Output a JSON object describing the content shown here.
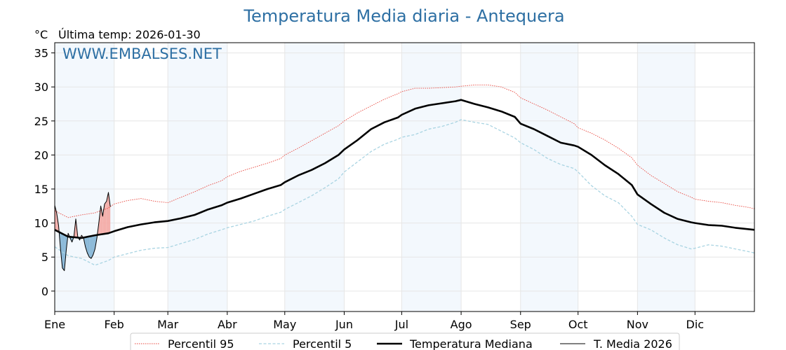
{
  "chart_data": {
    "type": "line",
    "title": "Temperatura Media diaria - Antequera",
    "unit": "°C",
    "last_temp_label": "Última temp: 2026-01-30",
    "watermark": "WWW.EMBALSES.NET",
    "ylim": [
      -3,
      36.5
    ],
    "yticks": [
      0,
      5,
      10,
      15,
      20,
      25,
      30,
      35
    ],
    "xlim": [
      1,
      366
    ],
    "months": [
      {
        "label": "Ene",
        "day": 1
      },
      {
        "label": "Feb",
        "day": 32
      },
      {
        "label": "Mar",
        "day": 60
      },
      {
        "label": "Abr",
        "day": 91
      },
      {
        "label": "May",
        "day": 121
      },
      {
        "label": "Jun",
        "day": 152
      },
      {
        "label": "Jul",
        "day": 182
      },
      {
        "label": "Ago",
        "day": 213
      },
      {
        "label": "Sep",
        "day": 244
      },
      {
        "label": "Oct",
        "day": 274
      },
      {
        "label": "Nov",
        "day": 305
      },
      {
        "label": "Dic",
        "day": 335
      }
    ],
    "shaded_months": [
      "Ene",
      "Mar",
      "May",
      "Jul",
      "Sep",
      "Nov"
    ],
    "grid": true,
    "legend_position": "bottom",
    "series": [
      {
        "name": "Percentil 95",
        "color": "#e8473e",
        "style": "dotted",
        "x": [
          1,
          8,
          15,
          22,
          29,
          32,
          39,
          46,
          53,
          60,
          67,
          74,
          81,
          88,
          91,
          98,
          105,
          112,
          119,
          121,
          128,
          135,
          142,
          149,
          152,
          159,
          166,
          173,
          180,
          182,
          189,
          196,
          203,
          210,
          213,
          220,
          227,
          234,
          241,
          244,
          251,
          258,
          265,
          272,
          274,
          281,
          288,
          295,
          302,
          305,
          312,
          319,
          326,
          333,
          335,
          342,
          349,
          356,
          363,
          366
        ],
        "y": [
          11.8,
          10.8,
          11.2,
          11.5,
          12.2,
          12.8,
          13.3,
          13.6,
          13.2,
          13.0,
          13.8,
          14.6,
          15.5,
          16.2,
          16.8,
          17.6,
          18.2,
          18.8,
          19.5,
          20.0,
          21.0,
          22.1,
          23.2,
          24.3,
          25.0,
          26.2,
          27.2,
          28.2,
          29.0,
          29.3,
          29.8,
          29.8,
          29.9,
          30.0,
          30.1,
          30.3,
          30.3,
          30.0,
          29.2,
          28.4,
          27.5,
          26.6,
          25.6,
          24.6,
          24.0,
          23.2,
          22.2,
          21.0,
          19.6,
          18.5,
          17.0,
          15.8,
          14.6,
          13.8,
          13.5,
          13.2,
          13.0,
          12.6,
          12.3,
          12.1
        ]
      },
      {
        "name": "Percentil 5",
        "color": "#a9d4e2",
        "style": "dashed",
        "x": [
          1,
          8,
          15,
          22,
          29,
          32,
          39,
          46,
          53,
          60,
          67,
          74,
          81,
          88,
          91,
          98,
          105,
          112,
          119,
          121,
          128,
          135,
          142,
          149,
          152,
          159,
          166,
          173,
          180,
          182,
          189,
          196,
          203,
          210,
          213,
          220,
          227,
          234,
          241,
          244,
          251,
          258,
          265,
          272,
          274,
          281,
          288,
          295,
          302,
          305,
          312,
          319,
          326,
          333,
          335,
          342,
          349,
          356,
          363,
          366
        ],
        "y": [
          6.5,
          5.2,
          4.8,
          3.8,
          4.5,
          5.0,
          5.5,
          6.0,
          6.3,
          6.4,
          7.0,
          7.6,
          8.4,
          9.0,
          9.3,
          9.8,
          10.3,
          11.0,
          11.6,
          12.0,
          13.0,
          14.0,
          15.2,
          16.5,
          17.5,
          19.0,
          20.5,
          21.6,
          22.3,
          22.6,
          23.0,
          23.8,
          24.2,
          24.8,
          25.2,
          24.8,
          24.5,
          23.5,
          22.5,
          21.8,
          20.8,
          19.5,
          18.6,
          18.0,
          17.5,
          15.5,
          14.0,
          13.0,
          11.0,
          9.8,
          9.0,
          7.8,
          6.8,
          6.2,
          6.3,
          6.8,
          6.6,
          6.2,
          5.8,
          5.6
        ]
      },
      {
        "name": "Temperatura Mediana",
        "color": "#000000",
        "style": "thick",
        "x": [
          1,
          8,
          15,
          22,
          29,
          32,
          39,
          46,
          53,
          60,
          67,
          74,
          81,
          88,
          91,
          98,
          105,
          112,
          119,
          121,
          128,
          135,
          142,
          149,
          152,
          159,
          166,
          173,
          180,
          182,
          189,
          196,
          203,
          210,
          213,
          220,
          227,
          234,
          241,
          244,
          251,
          258,
          265,
          272,
          274,
          281,
          288,
          295,
          302,
          305,
          312,
          319,
          326,
          333,
          335,
          342,
          349,
          356,
          363,
          366
        ],
        "y": [
          9.0,
          8.0,
          7.8,
          8.2,
          8.5,
          8.8,
          9.4,
          9.8,
          10.1,
          10.3,
          10.7,
          11.2,
          12.0,
          12.6,
          13.0,
          13.6,
          14.3,
          15.0,
          15.6,
          16.0,
          17.0,
          17.8,
          18.8,
          20.0,
          20.8,
          22.2,
          23.8,
          24.8,
          25.5,
          25.9,
          26.8,
          27.3,
          27.6,
          27.9,
          28.1,
          27.5,
          27.0,
          26.4,
          25.6,
          24.6,
          23.8,
          22.8,
          21.8,
          21.4,
          21.2,
          20.0,
          18.5,
          17.2,
          15.6,
          14.2,
          12.8,
          11.5,
          10.6,
          10.1,
          10.0,
          9.7,
          9.6,
          9.3,
          9.1,
          9.0
        ]
      },
      {
        "name": "T. Media 2026",
        "color": "#000000",
        "style": "thin",
        "x": [
          1,
          2,
          3,
          4,
          5,
          6,
          7,
          8,
          9,
          10,
          11,
          12,
          13,
          14,
          15,
          16,
          17,
          18,
          19,
          20,
          21,
          22,
          23,
          24,
          25,
          26,
          27,
          28,
          29,
          30
        ],
        "y": [
          12.6,
          11.5,
          9.6,
          6.2,
          3.4,
          3.0,
          6.0,
          8.5,
          7.8,
          7.2,
          8.0,
          10.6,
          8.0,
          7.5,
          8.2,
          7.8,
          6.5,
          5.6,
          5.0,
          4.8,
          5.3,
          6.2,
          7.8,
          10.0,
          12.5,
          11.0,
          12.8,
          13.2,
          14.5,
          12.4
        ]
      }
    ]
  }
}
